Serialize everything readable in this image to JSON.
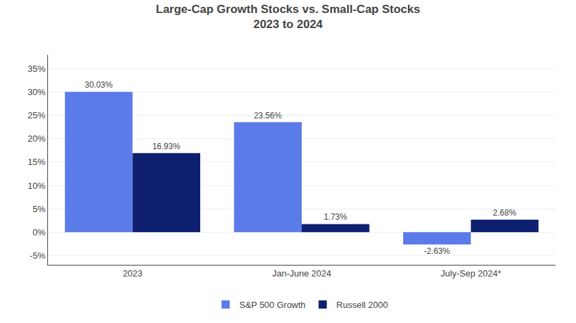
{
  "chart_data": {
    "type": "bar",
    "title": "Large-Cap Growth Stocks vs. Small-Cap Stocks",
    "subtitle": "2023 to 2024",
    "categories": [
      "2023",
      "Jan-June 2024",
      "July-Sep 2024*"
    ],
    "series": [
      {
        "name": "S&P 500 Growth",
        "color": "#5B7BE8",
        "values": [
          30.03,
          23.56,
          -2.63
        ],
        "value_labels": [
          "30.03%",
          "23.56%",
          "-2.63%"
        ]
      },
      {
        "name": "Russell 2000",
        "color": "#0D1F6E",
        "values": [
          16.93,
          1.73,
          2.68
        ],
        "value_labels": [
          "16.93%",
          "1.73%",
          "2.68%"
        ]
      }
    ],
    "ylim": [
      -7,
      38
    ],
    "yticks": [
      {
        "value": -5,
        "label": "-5%"
      },
      {
        "value": 0,
        "label": "0%"
      },
      {
        "value": 5,
        "label": "5%"
      },
      {
        "value": 10,
        "label": "10%"
      },
      {
        "value": 15,
        "label": "15%"
      },
      {
        "value": 20,
        "label": "20%"
      },
      {
        "value": 25,
        "label": "25%"
      },
      {
        "value": 30,
        "label": "30%"
      },
      {
        "value": 35,
        "label": "35%"
      }
    ],
    "grid": true,
    "legend": "bottom",
    "data_labels": true
  }
}
